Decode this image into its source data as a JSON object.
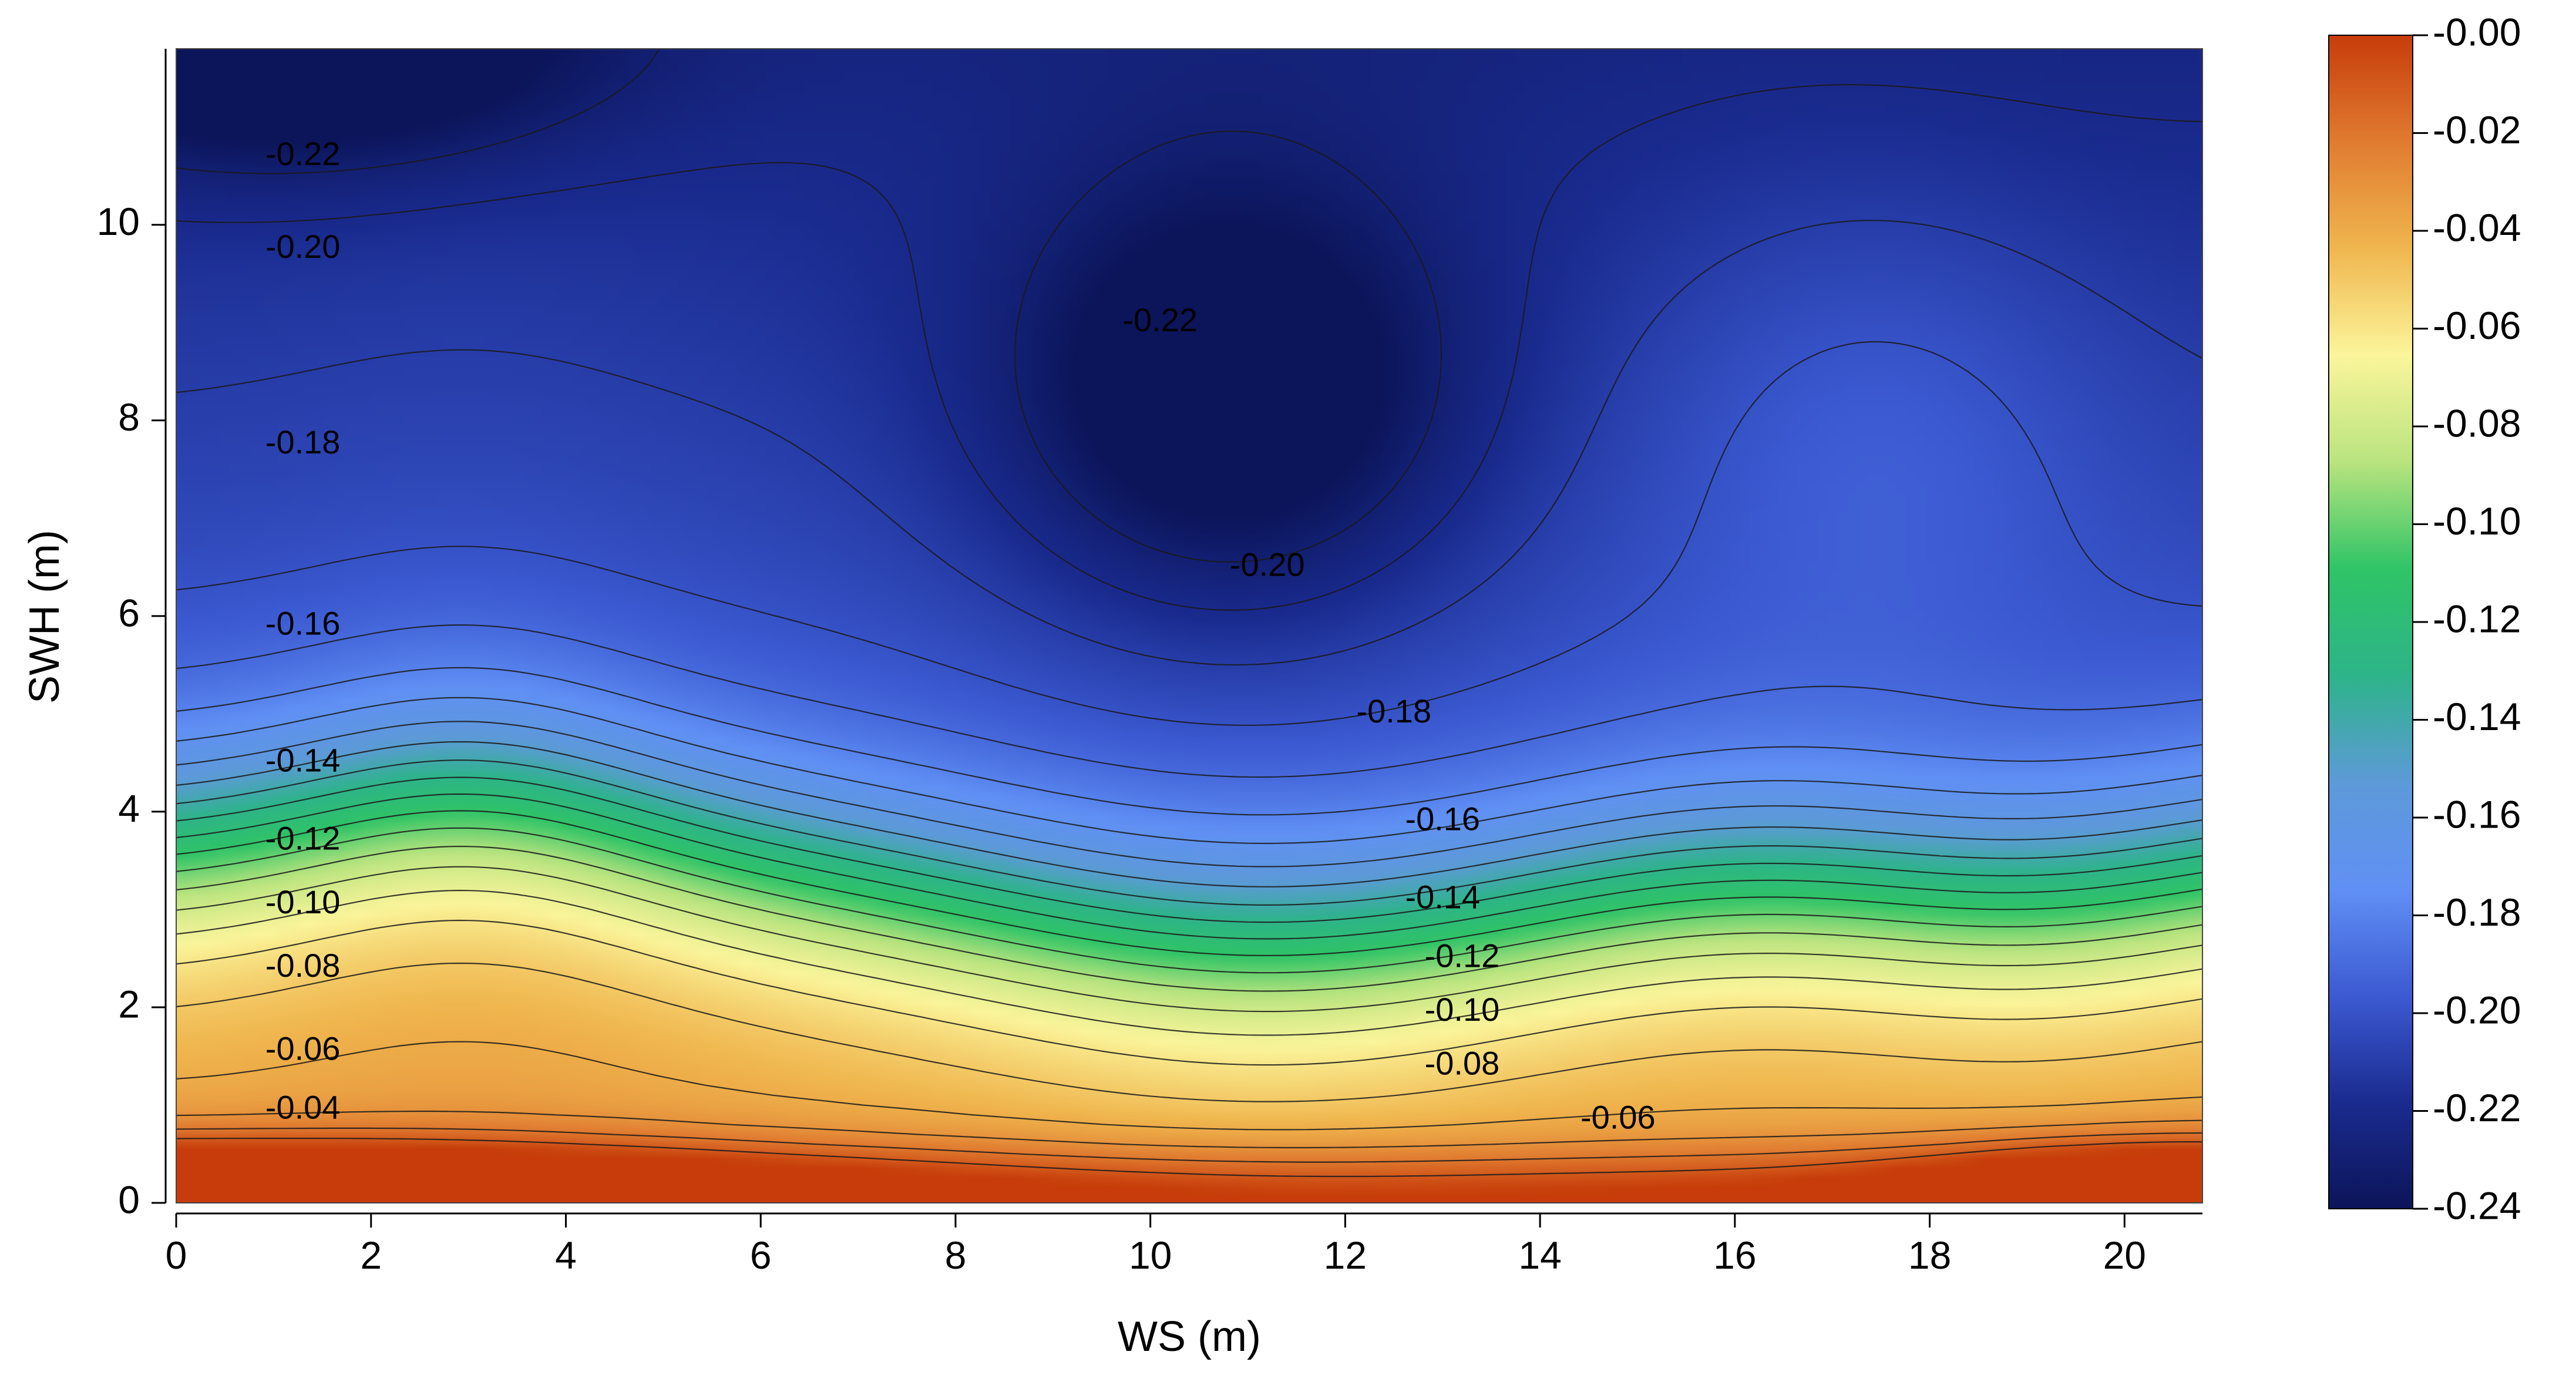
{
  "chart_data": {
    "type": "heatmap",
    "subtype": "filled-contour",
    "xlabel": "WS (m)",
    "ylabel": "SWH (m)",
    "xlim": [
      0,
      20.8
    ],
    "ylim": [
      0,
      11.8
    ],
    "xticks": [
      0,
      2,
      4,
      6,
      8,
      10,
      12,
      14,
      16,
      18,
      20
    ],
    "yticks": [
      0,
      2,
      4,
      6,
      8,
      10
    ],
    "grid": false,
    "colorbar": {
      "position": "right",
      "ticks": [
        "-0.00",
        "-0.02",
        "-0.04",
        "-0.06",
        "-0.08",
        "-0.10",
        "-0.12",
        "-0.14",
        "-0.16",
        "-0.18",
        "-0.20",
        "-0.22",
        "-0.24"
      ],
      "range": [
        -0.24,
        0.0
      ],
      "colormap": [
        "#c73c0a",
        "#e07b30",
        "#f0b64e",
        "#fbf59b",
        "#b9e47f",
        "#2fc466",
        "#2db489",
        "#5d9ad8",
        "#6090f5",
        "#3c5ad2",
        "#1a2b8f",
        "#0c1559"
      ]
    },
    "contour_levels": [
      -0.22,
      -0.2,
      -0.18,
      -0.16,
      -0.14,
      -0.12,
      -0.1,
      -0.08,
      -0.06,
      -0.04
    ],
    "contour_labels": [
      {
        "text": "-0.22",
        "x": 1.3,
        "y": 10.7
      },
      {
        "text": "-0.20",
        "x": 1.3,
        "y": 9.75
      },
      {
        "text": "-0.18",
        "x": 1.3,
        "y": 7.75
      },
      {
        "text": "-0.16",
        "x": 1.3,
        "y": 5.9
      },
      {
        "text": "-0.14",
        "x": 1.3,
        "y": 4.5
      },
      {
        "text": "-0.12",
        "x": 1.3,
        "y": 3.7
      },
      {
        "text": "-0.10",
        "x": 1.3,
        "y": 3.05
      },
      {
        "text": "-0.08",
        "x": 1.3,
        "y": 2.4
      },
      {
        "text": "-0.06",
        "x": 1.3,
        "y": 1.55
      },
      {
        "text": "-0.04",
        "x": 1.3,
        "y": 0.95
      },
      {
        "text": "-0.22",
        "x": 10.1,
        "y": 9.0
      },
      {
        "text": "-0.20",
        "x": 11.2,
        "y": 6.5
      },
      {
        "text": "-0.18",
        "x": 12.5,
        "y": 5.0
      },
      {
        "text": "-0.16",
        "x": 13.0,
        "y": 3.9
      },
      {
        "text": "-0.14",
        "x": 13.0,
        "y": 3.1
      },
      {
        "text": "-0.12",
        "x": 13.2,
        "y": 2.5
      },
      {
        "text": "-0.10",
        "x": 13.2,
        "y": 1.95
      },
      {
        "text": "-0.08",
        "x": 13.2,
        "y": 1.4
      },
      {
        "text": "-0.06",
        "x": 14.8,
        "y": 0.85
      }
    ],
    "features": [
      {
        "kind": "minimum",
        "value": -0.24,
        "x": 0.5,
        "y": 11.7
      },
      {
        "kind": "minimum",
        "value": -0.23,
        "x": 10.8,
        "y": 8.0
      },
      {
        "kind": "maximum",
        "value": -0.005,
        "x": 0.5,
        "y": 0.1
      }
    ]
  }
}
